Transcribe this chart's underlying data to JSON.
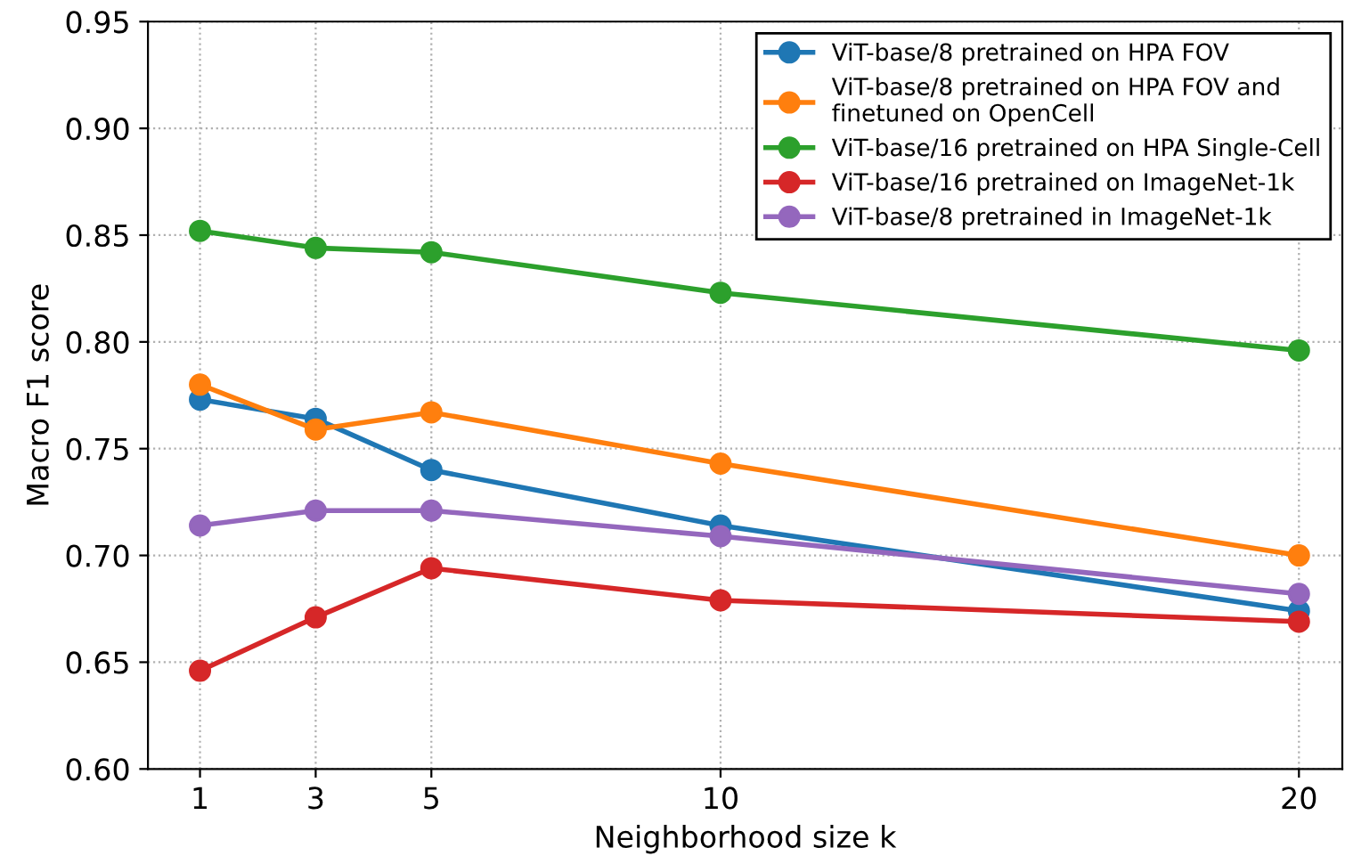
{
  "chart_data": {
    "type": "line",
    "xlabel": "Neighborhood size k",
    "ylabel": "Macro F1 score",
    "x": [
      1,
      3,
      5,
      10,
      20
    ],
    "series": [
      {
        "name": "ViT-base/8 pretrained on HPA FOV",
        "color": "#1f77b4",
        "values": [
          0.773,
          0.764,
          0.74,
          0.714,
          0.674
        ]
      },
      {
        "name": "ViT-base/8 pretrained on HPA FOV and\nfinetuned on OpenCell",
        "color": "#ff7f0e",
        "values": [
          0.78,
          0.759,
          0.767,
          0.743,
          0.7
        ]
      },
      {
        "name": "ViT-base/16 pretrained on HPA Single-Cell",
        "color": "#2ca02c",
        "values": [
          0.852,
          0.844,
          0.842,
          0.823,
          0.796
        ]
      },
      {
        "name": "ViT-base/16 pretrained on ImageNet-1k",
        "color": "#d62728",
        "values": [
          0.646,
          0.671,
          0.694,
          0.679,
          0.669
        ]
      },
      {
        "name": "ViT-base/8 pretrained in ImageNet-1k",
        "color": "#9467bd",
        "values": [
          0.714,
          0.721,
          0.721,
          0.709,
          0.682
        ]
      }
    ],
    "xlim": [
      0.1,
      20.75
    ],
    "xticks": [
      1,
      3,
      5,
      10,
      20
    ],
    "ylim": [
      0.6,
      0.95
    ],
    "yticks": [
      {
        "value": 0.6,
        "label": "0.60"
      },
      {
        "value": 0.65,
        "label": "0.65"
      },
      {
        "value": 0.7,
        "label": "0.70"
      },
      {
        "value": 0.75,
        "label": "0.75"
      },
      {
        "value": 0.8,
        "label": "0.80"
      },
      {
        "value": 0.85,
        "label": "0.85"
      },
      {
        "value": 0.9,
        "label": "0.90"
      },
      {
        "value": 0.95,
        "label": "0.95"
      }
    ],
    "grid": true,
    "legend": "top right",
    "marker": "circle",
    "line_style": "solid"
  }
}
